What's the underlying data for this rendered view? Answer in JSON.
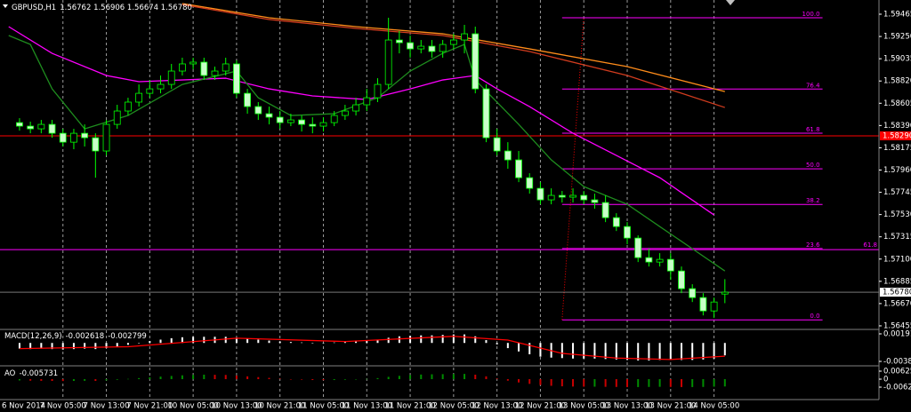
{
  "chart_data": [
    {
      "type": "candlestick",
      "title": "GBPUSD,H1",
      "quote": "1.56762 1.56906 1.56674 1.56780",
      "up_color": "#000000",
      "down_color": "#c8ffc8",
      "wick_color": "#00ff00",
      "open": [
        1.58418,
        1.58384,
        1.58358,
        1.58401,
        1.58315,
        1.58229,
        1.58315,
        1.58272,
        1.58144,
        1.58401,
        1.5853,
        1.58616,
        1.58701,
        1.58744,
        1.58787,
        1.58916,
        1.58985,
        1.59002,
        1.58873,
        1.58916,
        1.58985,
        1.58701,
        1.58573,
        1.58504,
        1.5847,
        1.58418,
        1.58444,
        1.58401,
        1.58384,
        1.58418,
        1.58487,
        1.5853,
        1.5859,
        1.58658,
        1.58787,
        1.59216,
        1.5919,
        1.5913,
        1.59156,
        1.59105,
        1.59173,
        1.59216,
        1.59276,
        1.58744,
        1.58272,
        1.58144,
        1.58058,
        1.57886,
        1.57783,
        1.57672,
        1.57715,
        1.57698,
        1.57715,
        1.57672,
        1.57646,
        1.575,
        1.57414,
        1.57303,
        1.57114,
        1.57071,
        1.57097,
        1.56985,
        1.56814,
        1.56728,
        1.56599,
        1.56762
      ],
      "high": [
        1.58461,
        1.58427,
        1.58444,
        1.58444,
        1.58358,
        1.58358,
        1.58401,
        1.58315,
        1.58444,
        1.5859,
        1.58658,
        1.58787,
        1.5883,
        1.58873,
        1.58985,
        1.59045,
        1.59045,
        1.59045,
        1.58959,
        1.59045,
        1.59019,
        1.58744,
        1.58616,
        1.58573,
        1.5853,
        1.58504,
        1.58487,
        1.5847,
        1.5847,
        1.5853,
        1.5859,
        1.58658,
        1.58744,
        1.58847,
        1.59431,
        1.59302,
        1.59259,
        1.59216,
        1.59216,
        1.59216,
        1.59276,
        1.59362,
        1.59345,
        1.58787,
        1.58358,
        1.58229,
        1.58144,
        1.57929,
        1.57843,
        1.57783,
        1.57758,
        1.57783,
        1.57758,
        1.57732,
        1.57715,
        1.57543,
        1.57457,
        1.57329,
        1.572,
        1.57157,
        1.57157,
        1.57028,
        1.56857,
        1.56771,
        1.56728,
        1.56906
      ],
      "low": [
        1.58341,
        1.58315,
        1.58315,
        1.58272,
        1.58187,
        1.58161,
        1.58187,
        1.57886,
        1.58101,
        1.58358,
        1.58487,
        1.58573,
        1.58658,
        1.58701,
        1.58744,
        1.58873,
        1.58933,
        1.5883,
        1.5883,
        1.58873,
        1.58658,
        1.58504,
        1.58444,
        1.58401,
        1.58358,
        1.58384,
        1.58332,
        1.58315,
        1.58332,
        1.58384,
        1.58444,
        1.58487,
        1.5853,
        1.58616,
        1.58744,
        1.59087,
        1.59045,
        1.59087,
        1.59045,
        1.59045,
        1.5913,
        1.59087,
        1.58701,
        1.58229,
        1.58101,
        1.57972,
        1.57843,
        1.57732,
        1.57629,
        1.57629,
        1.57646,
        1.57646,
        1.57629,
        1.57586,
        1.57457,
        1.57371,
        1.57243,
        1.57071,
        1.57028,
        1.57028,
        1.569,
        1.56771,
        1.56685,
        1.56556,
        1.56531,
        1.56674
      ],
      "close": [
        1.58384,
        1.58358,
        1.58401,
        1.58315,
        1.58229,
        1.58315,
        1.58272,
        1.58144,
        1.58401,
        1.5853,
        1.58616,
        1.58701,
        1.58744,
        1.58787,
        1.58916,
        1.58985,
        1.59002,
        1.58873,
        1.58916,
        1.58985,
        1.58701,
        1.58573,
        1.58504,
        1.5847,
        1.58418,
        1.58444,
        1.58401,
        1.58384,
        1.58418,
        1.58487,
        1.5853,
        1.5859,
        1.58658,
        1.58787,
        1.59216,
        1.5919,
        1.5913,
        1.59156,
        1.59105,
        1.59173,
        1.59216,
        1.59276,
        1.58744,
        1.58272,
        1.58144,
        1.58058,
        1.57886,
        1.57783,
        1.57672,
        1.57715,
        1.57698,
        1.57715,
        1.57672,
        1.57646,
        1.575,
        1.57414,
        1.57303,
        1.57114,
        1.57071,
        1.57097,
        1.56985,
        1.56814,
        1.56728,
        1.56599,
        1.56685,
        1.5678
      ],
      "xlim": [
        -1.8,
        79.2
      ],
      "xticks": [
        {
          "value": 0,
          "label": "6 Nov 2014"
        },
        {
          "value": 4,
          "label": "7 Nov 05:00"
        },
        {
          "value": 8,
          "label": "7 Nov 13:00"
        },
        {
          "value": 12,
          "label": "7 Nov 21:00"
        },
        {
          "value": 16,
          "label": "10 Nov 05:00"
        },
        {
          "value": 20,
          "label": "10 Nov 13:00"
        },
        {
          "value": 24,
          "label": "10 Nov 21:00"
        },
        {
          "value": 28,
          "label": "11 Nov 05:00"
        },
        {
          "value": 32,
          "label": "11 Nov 13:00"
        },
        {
          "value": 36,
          "label": "11 Nov 21:00"
        },
        {
          "value": 40,
          "label": "12 Nov 05:00"
        },
        {
          "value": 44,
          "label": "12 Nov 13:00"
        },
        {
          "value": 48,
          "label": "12 Nov 21:00"
        },
        {
          "value": 52,
          "label": "13 Nov 05:00"
        },
        {
          "value": 56,
          "label": "13 Nov 13:00"
        },
        {
          "value": 60,
          "label": "13 Nov 21:00"
        },
        {
          "value": 64,
          "label": "14 Nov 05:00"
        }
      ],
      "ylim": [
        1.56429,
        1.59568
      ],
      "yticks": [
        1.59465,
        {
          "value": 1.5925,
          "label": "1.59250"
        },
        1.59035,
        {
          "value": 1.5882,
          "label": "1.58820"
        },
        1.58605,
        {
          "value": 1.5839,
          "label": "1.58390"
        },
        1.58175,
        {
          "value": 1.5796,
          "label": "1.57960"
        },
        1.57745,
        {
          "value": 1.5753,
          "label": "1.57530"
        },
        1.57315,
        {
          "value": 1.571,
          "label": "1.57100"
        },
        1.56885,
        {
          "value": 1.5667,
          "label": "1.56670"
        },
        1.56455
      ],
      "lines": [
        {
          "color": "#ff8c1a",
          "x": [
            15,
            23,
            31,
            39,
            47,
            56,
            65
          ],
          "values": [
            1.59568,
            1.59431,
            1.59345,
            1.59276,
            1.5913,
            1.58959,
            1.58718
          ]
        },
        {
          "color": "#d23c1e",
          "x": [
            15,
            23,
            31,
            39,
            47,
            56,
            65
          ],
          "values": [
            1.59559,
            1.59414,
            1.59328,
            1.59259,
            1.59105,
            1.58873,
            1.58564
          ]
        },
        {
          "color": "#ff00ff",
          "x": [
            -1,
            3,
            8,
            11,
            19,
            23,
            27,
            32,
            36,
            39,
            42,
            44,
            47,
            51,
            55,
            59,
            64
          ],
          "values": [
            1.59345,
            1.59087,
            1.58873,
            1.58813,
            1.58847,
            1.58744,
            1.58676,
            1.58641,
            1.58744,
            1.5883,
            1.58873,
            1.58744,
            1.58573,
            1.58315,
            1.58101,
            1.57886,
            1.57526
          ]
        },
        {
          "color": "#1e8c1e",
          "x": [
            -1,
            1,
            3,
            6,
            10,
            15,
            20,
            22,
            25,
            29,
            33,
            36,
            39,
            41,
            42,
            46,
            49,
            52,
            56,
            59,
            62,
            65
          ],
          "values": [
            1.59259,
            1.59173,
            1.58744,
            1.58358,
            1.58487,
            1.58787,
            1.58916,
            1.58658,
            1.58487,
            1.58504,
            1.58658,
            1.58916,
            1.59087,
            1.59173,
            1.5883,
            1.58401,
            1.58058,
            1.578,
            1.57629,
            1.57414,
            1.572,
            1.56985
          ]
        }
      ],
      "hlines": [
        {
          "value": 1.5829,
          "color": "#ff0000",
          "value_label": "1.58290"
        },
        {
          "value": 1.57191,
          "color": "#ff00ff",
          "label": "61.8"
        }
      ],
      "last": {
        "value": 1.5678,
        "value_label": "1.56780",
        "color": "#c0c0c0"
      },
      "fibonacci": {
        "color": "#ff00ff",
        "x": [
          50,
          74
        ],
        "levels": [
          {
            "value": 1.59431,
            "label": "100.0"
          },
          {
            "value": 1.58742,
            "label": "76.4"
          },
          {
            "value": 1.58316,
            "label": "61.8"
          },
          {
            "value": 1.57972,
            "label": "50.0"
          },
          {
            "value": 1.57628,
            "label": "38.2"
          },
          {
            "value": 1.57202,
            "label": "23.6"
          },
          {
            "value": 1.56513,
            "label": "0.0"
          }
        ]
      },
      "trendline": {
        "color": "#ff0000",
        "x": [
          50,
          52
        ],
        "values": [
          1.56513,
          1.59431
        ]
      }
    },
    {
      "type": "macd",
      "title": "MACD(12,26,9)",
      "color": "#ffffff",
      "values": [
        -0.0012,
        -0.0013,
        -0.0012,
        -0.0013,
        -0.0014,
        -0.0013,
        -0.0012,
        -0.0013,
        -0.0011,
        -0.0008,
        -0.0004,
        0,
        0.0004,
        0.0007,
        0.001,
        0.0012,
        0.0013,
        0.0013,
        0.0013,
        0.0013,
        0.0011,
        0.0009,
        0.0007,
        0.0005,
        0.0003,
        0.0002,
        0.0001,
        0,
        0,
        0.0001,
        0.0002,
        0.0003,
        0.0004,
        0.0006,
        0.0011,
        0.0014,
        0.0015,
        0.0016,
        0.0016,
        0.0017,
        0.0018,
        0.0018,
        0.0014,
        0.0006,
        -0.0003,
        -0.0011,
        -0.0018,
        -0.0024,
        -0.0029,
        -0.0031,
        -0.0032,
        -0.0033,
        -0.0033,
        -0.0033,
        -0.0034,
        -0.0035,
        -0.0036,
        -0.0037,
        -0.0037,
        -0.0036,
        -0.0036,
        -0.0036,
        -0.0036,
        -0.0035,
        -0.0033,
        -0.002618
      ],
      "signal": {
        "color": "#ff0000",
        "x": [
          0,
          10,
          20,
          30,
          40,
          45,
          50,
          55,
          60,
          65
        ],
        "values": [
          -0.0012,
          -0.0008,
          0.001,
          0.0003,
          0.0014,
          0.0006,
          -0.0022,
          -0.0032,
          -0.0035,
          -0.002799
        ]
      },
      "ylim": [
        -0.004647,
        0.002667
      ],
      "yticks": [
        0.001917,
        -0.003897
      ]
    },
    {
      "type": "ao",
      "title": "AO",
      "up_color": "#008c00",
      "down_color": "#c80000",
      "values": [
        -0.001,
        -0.0012,
        -0.0013,
        -0.0014,
        -0.0015,
        -0.0014,
        -0.0013,
        -0.0014,
        -0.001,
        -0.0005,
        0.0002,
        0.0008,
        0.0014,
        0.002,
        0.0025,
        0.003,
        0.0033,
        0.0035,
        0.0034,
        0.0033,
        0.0028,
        0.0022,
        0.0016,
        0.001,
        0.0004,
        0,
        -0.0004,
        -0.0007,
        -0.0008,
        -0.0007,
        -0.0005,
        -0.0002,
        0.0002,
        0.0008,
        0.0018,
        0.0026,
        0.0032,
        0.0036,
        0.0038,
        0.0039,
        0.004,
        0.0041,
        0.0035,
        0.0022,
        0.0005,
        -0.0012,
        -0.0026,
        -0.0037,
        -0.0046,
        -0.0052,
        -0.0056,
        -0.0058,
        -0.0059,
        -0.0059,
        -0.006,
        -0.0061,
        -0.0062,
        -0.0062,
        -0.0061,
        -0.006,
        -0.0061,
        -0.0062,
        -0.0062,
        -0.0061,
        -0.0059,
        -0.005731
      ],
      "ylim": [
        -0.015278,
        0.009723
      ],
      "yticks": [
        0.006251,
        0,
        -0.006251
      ]
    }
  ]
}
